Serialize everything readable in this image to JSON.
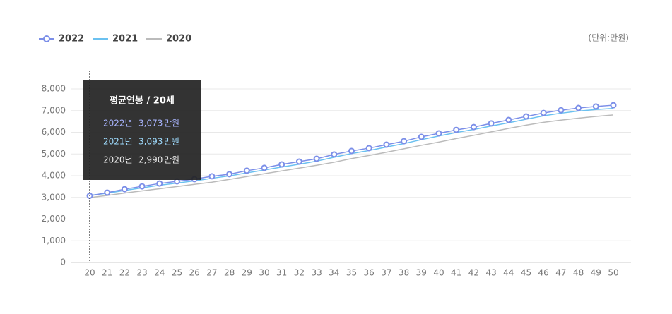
{
  "chart_data": {
    "type": "line",
    "unit_label": "(단위:만원)",
    "categories": [
      "20",
      "21",
      "22",
      "23",
      "24",
      "25",
      "26",
      "27",
      "28",
      "29",
      "30",
      "31",
      "32",
      "33",
      "34",
      "35",
      "36",
      "37",
      "38",
      "39",
      "40",
      "41",
      "42",
      "43",
      "44",
      "45",
      "46",
      "47",
      "48",
      "49",
      "50"
    ],
    "series": [
      {
        "name": "2022",
        "color": "#7b8ee8",
        "marker": "circle",
        "values": [
          3073,
          3220,
          3380,
          3510,
          3640,
          3740,
          3840,
          3970,
          4070,
          4230,
          4360,
          4520,
          4650,
          4780,
          4980,
          5140,
          5270,
          5430,
          5590,
          5790,
          5950,
          6110,
          6240,
          6410,
          6570,
          6730,
          6890,
          7020,
          7120,
          7190,
          7250
        ]
      },
      {
        "name": "2021",
        "color": "#6bc1f0",
        "values": [
          3093,
          3190,
          3320,
          3440,
          3560,
          3660,
          3760,
          3880,
          3990,
          4130,
          4260,
          4400,
          4530,
          4670,
          4850,
          5020,
          5160,
          5320,
          5480,
          5660,
          5830,
          5990,
          6130,
          6290,
          6440,
          6600,
          6760,
          6880,
          6980,
          7050,
          7100
        ]
      },
      {
        "name": "2020",
        "color": "#bbbbbb",
        "values": [
          2990,
          3090,
          3200,
          3300,
          3400,
          3500,
          3600,
          3700,
          3830,
          3960,
          4090,
          4220,
          4350,
          4480,
          4620,
          4790,
          4930,
          5080,
          5240,
          5400,
          5550,
          5710,
          5860,
          6020,
          6180,
          6330,
          6460,
          6560,
          6650,
          6730,
          6800
        ]
      }
    ],
    "ylim": [
      0,
      8000
    ],
    "yticks": [
      0,
      {
        "value": 1000,
        "label": "1,000"
      },
      {
        "value": 2000,
        "label": "2,000"
      },
      {
        "value": 3000,
        "label": "3,000"
      },
      {
        "value": 4000,
        "label": "4,000"
      },
      {
        "value": 5000,
        "label": "5,000"
      },
      {
        "value": 6000,
        "label": "6,000"
      },
      {
        "value": 7000,
        "label": "7,000"
      },
      {
        "value": 8000,
        "label": "8,000"
      }
    ],
    "grid": true,
    "tooltip": {
      "title": "평균연봉 / 20세",
      "rows": [
        {
          "year": "2022년",
          "value": "3,073",
          "unit": "만원"
        },
        {
          "year": "2021년",
          "value": "3,093",
          "unit": "만원"
        },
        {
          "year": "2020년",
          "value": "2,990",
          "unit": "만원"
        }
      ]
    }
  }
}
